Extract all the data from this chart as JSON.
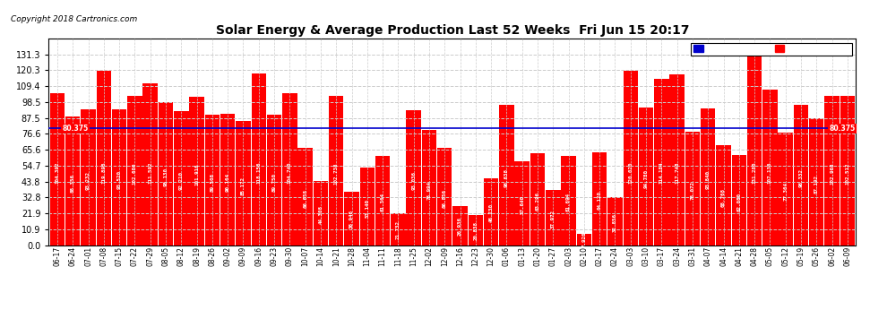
{
  "title": "Solar Energy & Average Production Last 52 Weeks  Fri Jun 15 20:17",
  "copyright": "Copyright 2018 Cartronics.com",
  "average_line": 80.375,
  "average_label": "80.375",
  "bar_color": "#ff0000",
  "average_line_color": "#0000cd",
  "background_color": "#ffffff",
  "plot_bg_color": "#ffffff",
  "grid_color": "#aaaaaa",
  "ylim_max": 142,
  "yticks": [
    0.0,
    10.9,
    21.9,
    32.8,
    43.8,
    54.7,
    65.6,
    76.6,
    87.5,
    98.5,
    109.4,
    120.3,
    131.3
  ],
  "legend_avg_color": "#0000cc",
  "legend_weekly_color": "#ff0000",
  "categories": [
    "06-17",
    "06-24",
    "07-01",
    "07-08",
    "07-15",
    "07-22",
    "07-29",
    "08-05",
    "08-12",
    "08-19",
    "08-26",
    "09-02",
    "09-09",
    "09-16",
    "09-23",
    "09-30",
    "10-07",
    "10-14",
    "10-21",
    "10-28",
    "11-04",
    "11-11",
    "11-18",
    "11-25",
    "12-02",
    "12-09",
    "12-16",
    "12-23",
    "12-30",
    "01-06",
    "01-13",
    "01-20",
    "01-27",
    "02-03",
    "02-10",
    "02-17",
    "02-24",
    "03-03",
    "03-10",
    "03-17",
    "03-24",
    "03-31",
    "04-07",
    "04-14",
    "04-21",
    "04-28",
    "05-05",
    "05-12",
    "05-19",
    "05-26",
    "06-02",
    "06-09"
  ],
  "values": [
    104.392,
    88.356,
    93.232,
    119.896,
    93.52,
    102.68,
    111.592,
    98.13,
    92.21,
    101.916,
    89.508,
    90.164,
    85.172,
    118.156,
    89.75,
    104.74,
    66.658,
    44.308,
    102.738,
    36.946,
    53.14,
    61.364,
    21.732,
    93.036,
    78.994,
    66.856,
    26.936,
    20.838,
    46.23,
    96.638,
    57.64,
    63.296,
    37.972,
    61.694,
    7.926,
    64.12,
    32.856,
    120.02,
    94.78,
    114.184,
    117.748,
    78.072,
    93.84,
    68.768,
    62.08,
    131.28,
    107.136,
    77.364,
    96.332,
    87.192,
    102.968,
    102.512
  ],
  "bar_labels": [
    "104.392",
    "88.356",
    "93.232",
    "119.896",
    "93.520",
    "102.680",
    "111.592",
    "98.130",
    "92.210",
    "101.916",
    "89.508",
    "90.164",
    "85.172",
    "118.156",
    "89.750",
    "104.740",
    "66.658",
    "44.308",
    "102.738",
    "36.946",
    "53.140",
    "61.364",
    "21.732",
    "93.036",
    "78.994",
    "66.856",
    "26.936",
    "20.838",
    "46.230",
    "96.638",
    "57.640",
    "63.296",
    "37.972",
    "61.694",
    "7.926",
    "64.120",
    "32.856",
    "120.020",
    "94.780",
    "114.184",
    "117.748",
    "78.072",
    "93.840",
    "68.768",
    "62.080",
    "131.280",
    "107.136",
    "77.364",
    "96.332",
    "87.192",
    "102.968",
    "102.512"
  ]
}
